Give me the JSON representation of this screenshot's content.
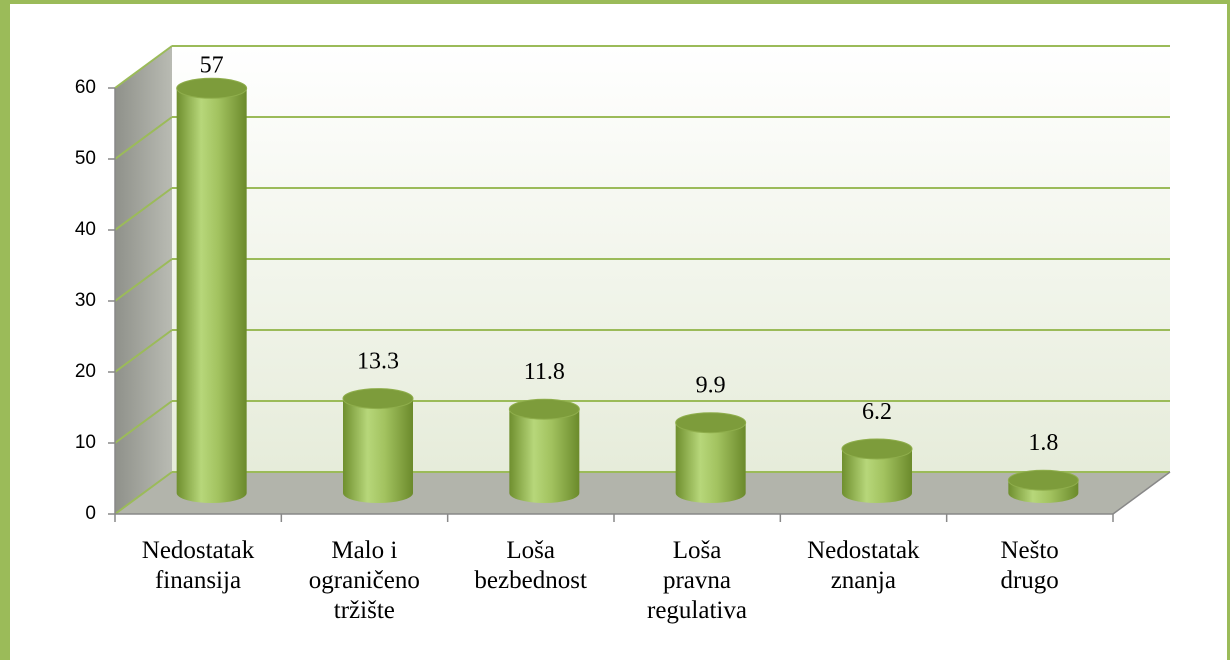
{
  "chart_data": {
    "type": "bar3d",
    "categories": [
      "Nedostatak\nfinansija",
      "Malo i\nograničeno\ntržište",
      "Loša\nbezbednost",
      "Loša\npravna\nregulativa",
      "Nedostatak\nznanja",
      "Nešto\ndrugo"
    ],
    "values": [
      57,
      13.3,
      11.8,
      9.9,
      6.2,
      1.8
    ],
    "color": "#9bbb59",
    "ylim": [
      0,
      60
    ],
    "yticks": [
      0,
      10,
      20,
      30,
      40,
      50,
      60
    ],
    "grid": true
  }
}
